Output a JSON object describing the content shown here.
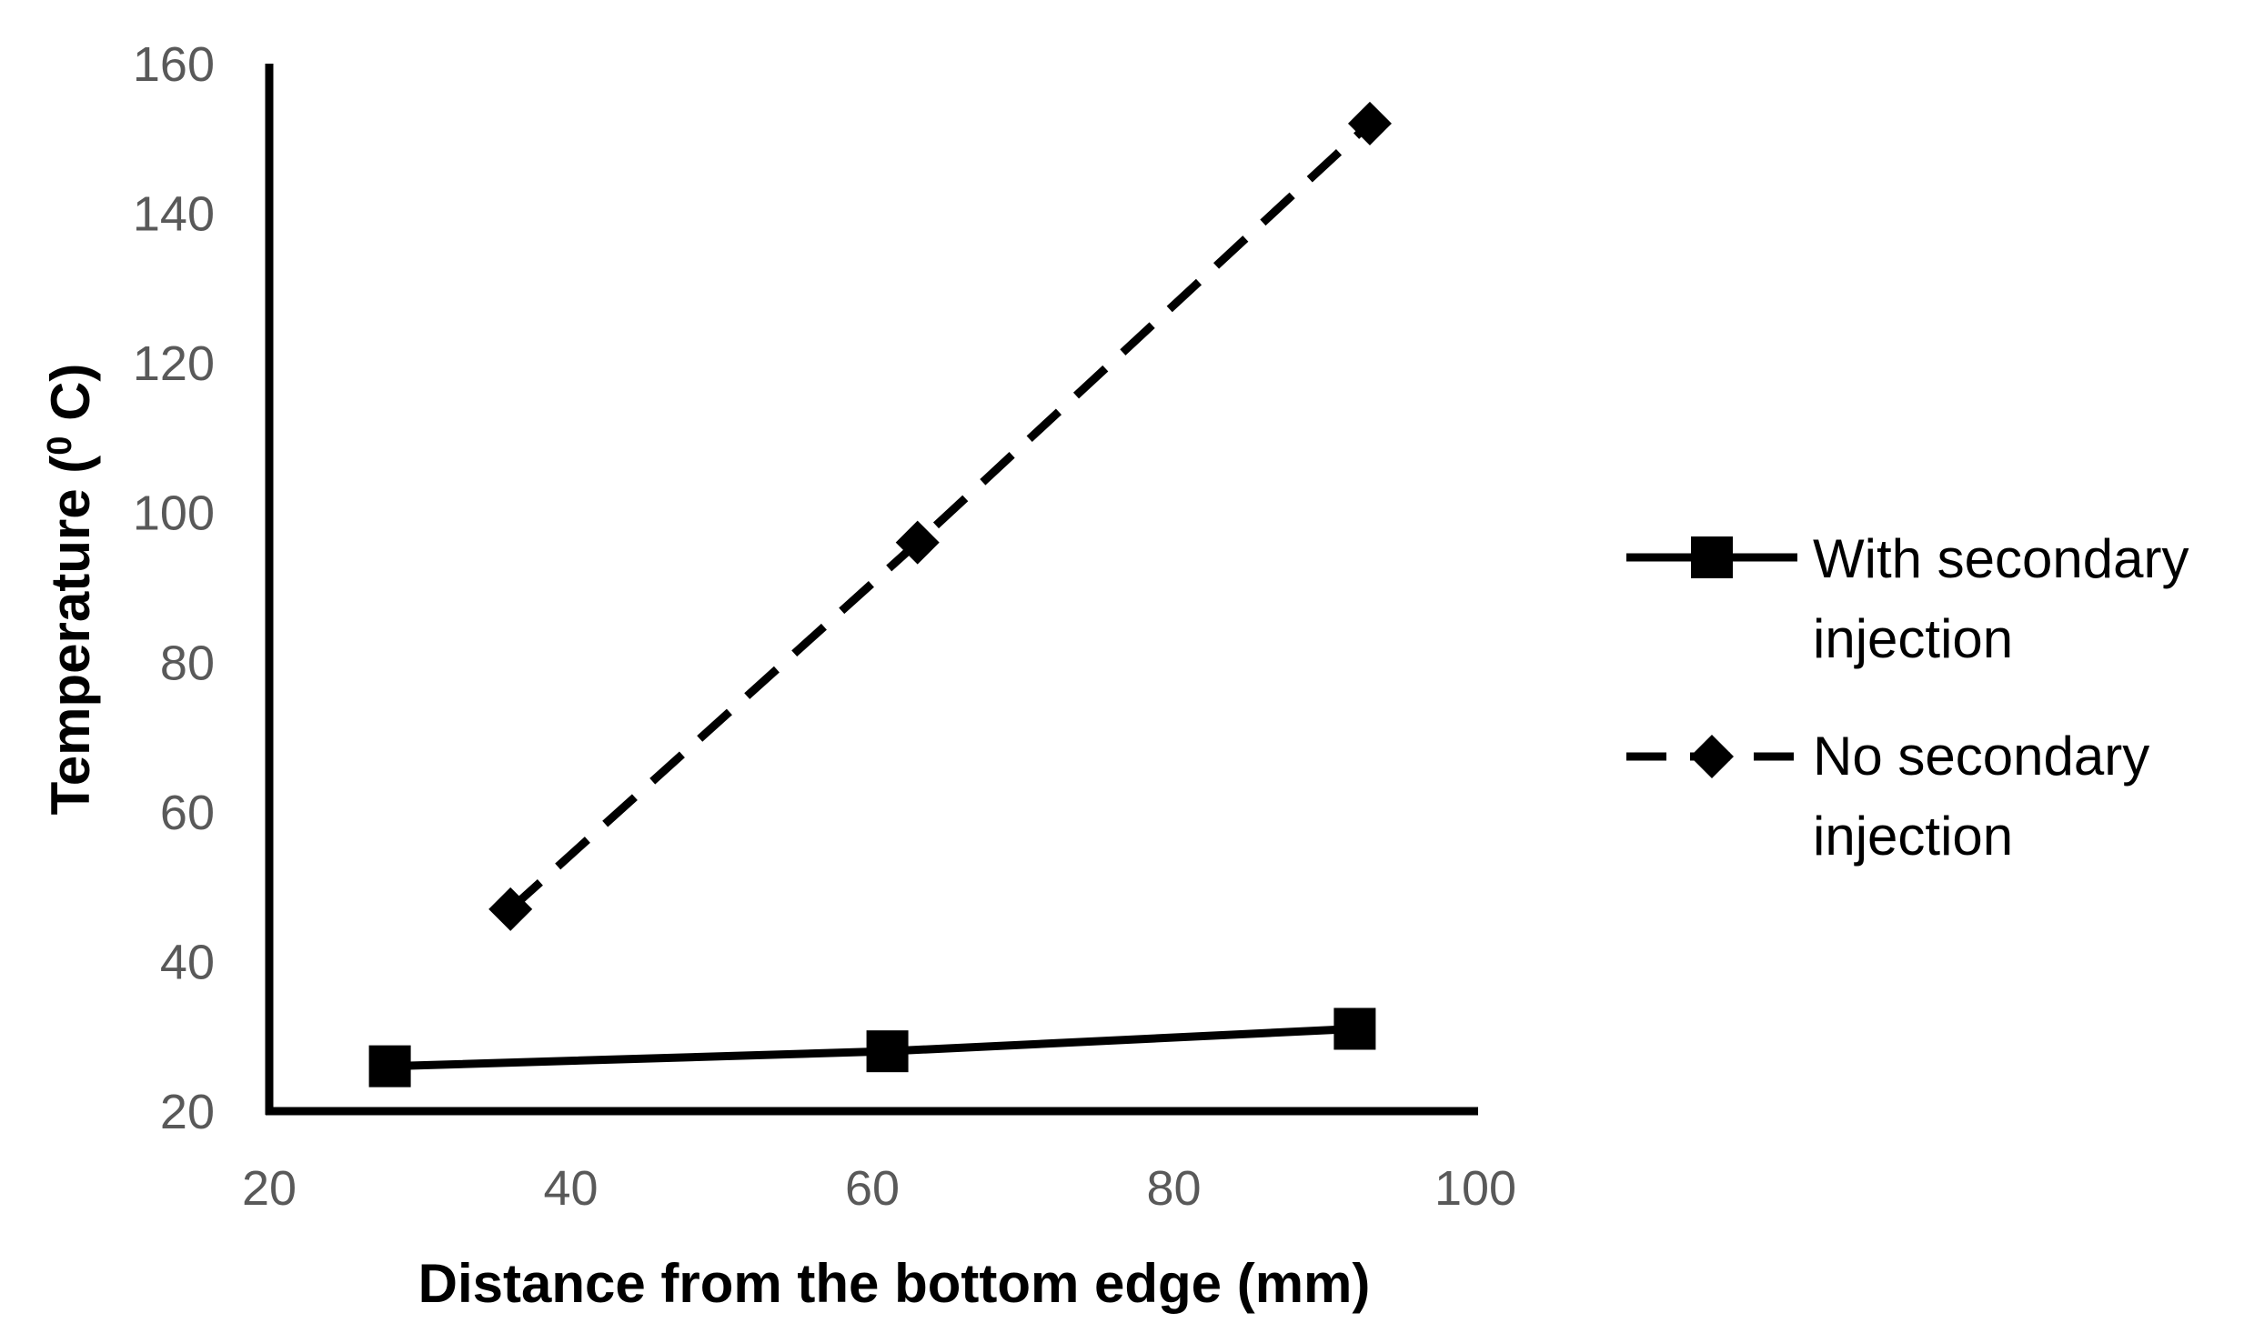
{
  "chart_data": {
    "type": "line",
    "title": "",
    "xlabel": "Distance from the bottom edge (mm)",
    "ylabel_parts": [
      "Temperature (",
      "0",
      " C)"
    ],
    "xlim": [
      20,
      100
    ],
    "ylim": [
      20,
      160
    ],
    "x_ticks": [
      20,
      40,
      60,
      80,
      100
    ],
    "y_ticks": [
      20,
      40,
      60,
      80,
      100,
      120,
      140,
      160
    ],
    "grid": false,
    "legend_position": "right",
    "series": [
      {
        "name_lines": [
          "With secondary",
          "injection"
        ],
        "line_style": "solid",
        "marker": "square",
        "color": "#000000",
        "x": [
          28,
          61,
          92
        ],
        "y": [
          26,
          28,
          31
        ]
      },
      {
        "name_lines": [
          "No secondary",
          "injection"
        ],
        "line_style": "dashed",
        "marker": "diamond",
        "color": "#000000",
        "x": [
          36,
          63,
          93
        ],
        "y": [
          47,
          96,
          152
        ]
      }
    ]
  }
}
